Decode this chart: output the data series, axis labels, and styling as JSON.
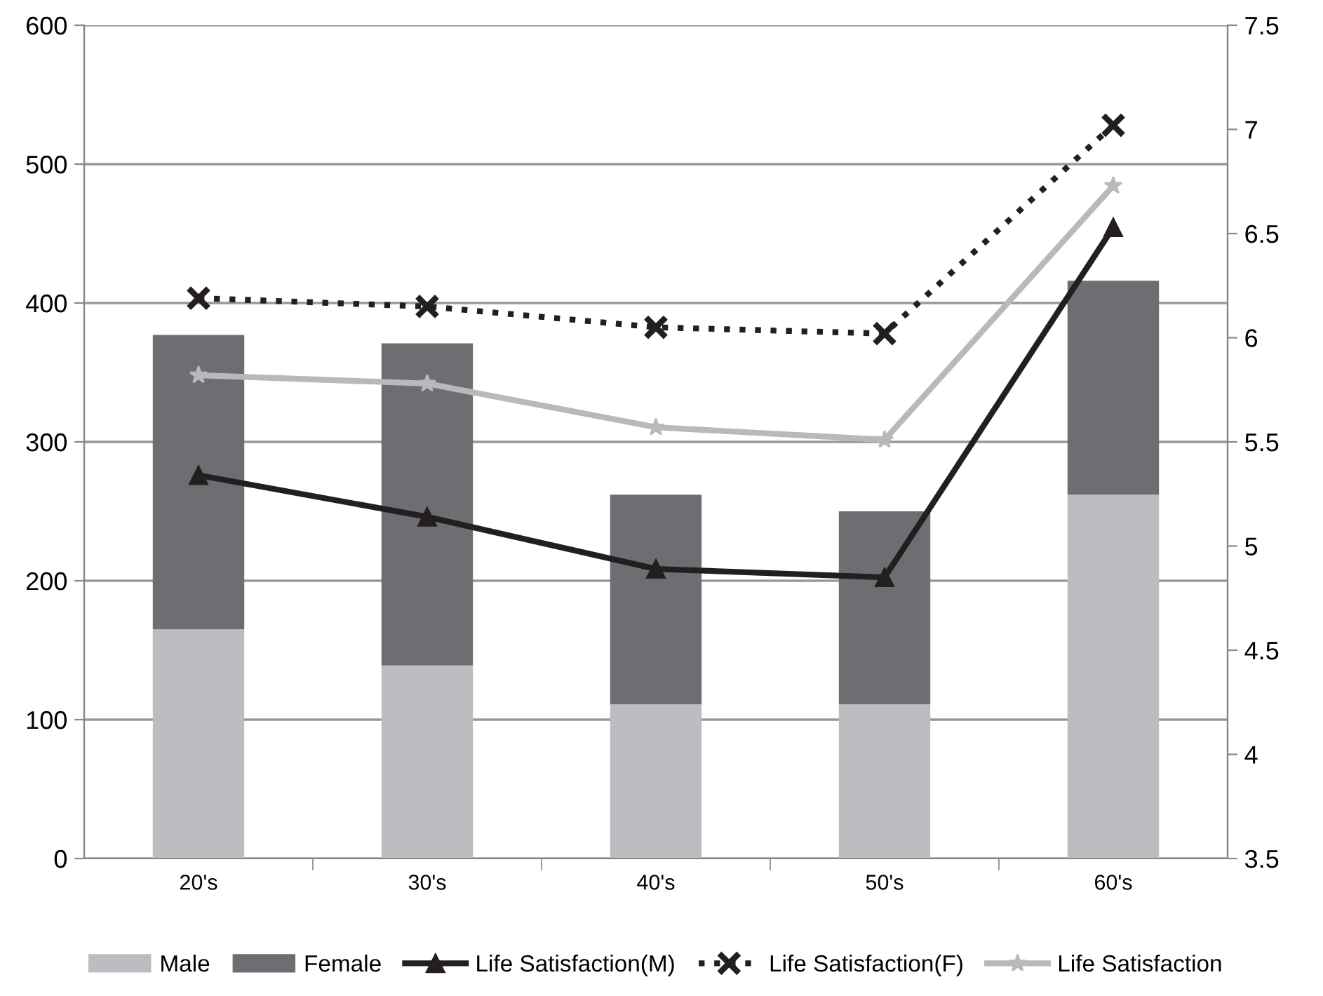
{
  "chart_data": {
    "type": "bar",
    "stacked": true,
    "categories": [
      "20's",
      "30's",
      "40's",
      "50's",
      "60's"
    ],
    "series": [
      {
        "name": "Male",
        "color": "#bcbdc0",
        "values": [
          165,
          139,
          111,
          111,
          262
        ]
      },
      {
        "name": "Female",
        "color": "#6d6e72",
        "values": [
          212,
          232,
          151,
          139,
          154
        ]
      },
      {
        "name": "Life Satisfaction(M)",
        "type": "line",
        "axis": "y2",
        "color": "#231f20",
        "marker": "triangle",
        "line_style": "solid",
        "values": [
          5.34,
          5.14,
          4.89,
          4.85,
          6.53
        ]
      },
      {
        "name": "Life Satisfaction(F)",
        "type": "line",
        "axis": "y2",
        "color": "#231f20",
        "marker": "cross",
        "line_style": "dotted",
        "values": [
          6.19,
          6.15,
          6.05,
          6.02,
          7.02
        ]
      },
      {
        "name": "Life Satisfaction",
        "type": "line",
        "axis": "y2",
        "color": "#b8b9bb",
        "marker": "star",
        "line_style": "solid",
        "values": [
          5.82,
          5.78,
          5.57,
          5.51,
          6.73
        ]
      }
    ],
    "ylim": [
      0,
      600
    ],
    "yticks": [
      0,
      100,
      200,
      300,
      400,
      500,
      600
    ],
    "y2lim": [
      3.5,
      7.5
    ],
    "y2ticks": [
      3.5,
      4,
      4.5,
      5,
      5.5,
      6,
      6.5,
      7,
      7.5
    ],
    "grid": "y",
    "legend": "bottom"
  }
}
